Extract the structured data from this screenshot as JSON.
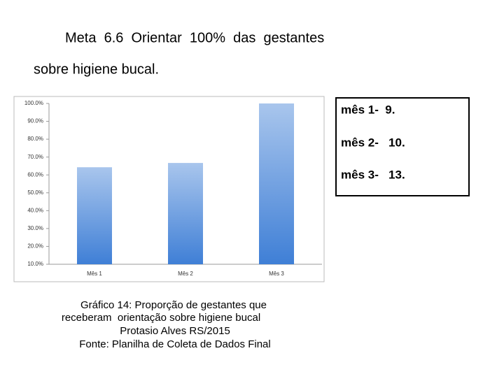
{
  "header": {
    "title_lines": [
      "Meta  6.6  Orientar  100%  das  gestantes",
      "sobre higiene bucal."
    ]
  },
  "chart_data": {
    "type": "bar",
    "categories": [
      "Mês 1",
      "Mês 2",
      "Mês 3"
    ],
    "values": [
      64.3,
      66.7,
      100
    ],
    "color": "#3f7fd6",
    "ylim": [
      10,
      100
    ],
    "yticks": [
      {
        "value": 10,
        "label": "10.0%"
      },
      {
        "value": 20,
        "label": "20.0%"
      },
      {
        "value": 30,
        "label": "30.0%"
      },
      {
        "value": 40,
        "label": "40.0%"
      },
      {
        "value": 50,
        "label": "50.0%"
      },
      {
        "value": 60,
        "label": "60.0%"
      },
      {
        "value": 70,
        "label": "70.0%"
      },
      {
        "value": 80,
        "label": "80.0%"
      },
      {
        "value": 90,
        "label": "90.0%"
      },
      {
        "value": 100,
        "label": "100.0%"
      }
    ],
    "grid": false
  },
  "legend_box": {
    "lines": [
      "mês 1-  9.",
      "mês 2-   10.",
      "mês 3-   13."
    ]
  },
  "caption": {
    "lines": [
      "Gráfico 14: Proporção de gestantes que",
      "receberam  orientação sobre higiene bucal",
      "Protasio Alves RS/2015",
      "Fonte: Planilha de Coleta de Dados Final"
    ]
  }
}
